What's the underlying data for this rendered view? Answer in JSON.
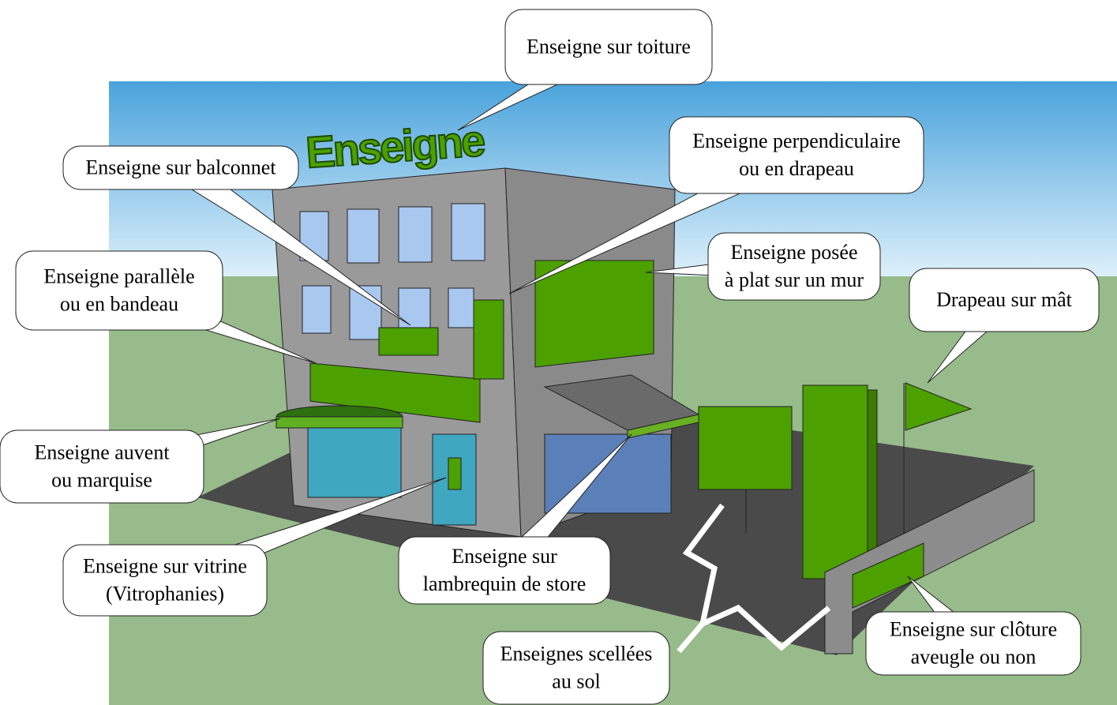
{
  "roof_sign": "Enseigne",
  "callouts": [
    {
      "lines": [
        "Enseigne sur toiture"
      ]
    },
    {
      "lines": [
        "Enseigne sur balconnet"
      ]
    },
    {
      "lines": [
        "Enseigne perpendiculaire",
        "ou en drapeau"
      ]
    },
    {
      "lines": [
        "Enseigne posée",
        "à plat sur un mur"
      ]
    },
    {
      "lines": [
        "Enseigne parallèle",
        "ou en bandeau"
      ]
    },
    {
      "lines": [
        "Drapeau sur mât"
      ]
    },
    {
      "lines": [
        "Enseigne auvent",
        "ou marquise"
      ]
    },
    {
      "lines": [
        "Enseigne sur vitrine",
        "(Vitrophanies)"
      ]
    },
    {
      "lines": [
        "Enseigne sur",
        "lambrequin de store"
      ]
    },
    {
      "lines": [
        "Enseignes scellées",
        "au sol"
      ]
    },
    {
      "lines": [
        "Enseigne sur clôture",
        "aveugle ou non"
      ]
    }
  ]
}
